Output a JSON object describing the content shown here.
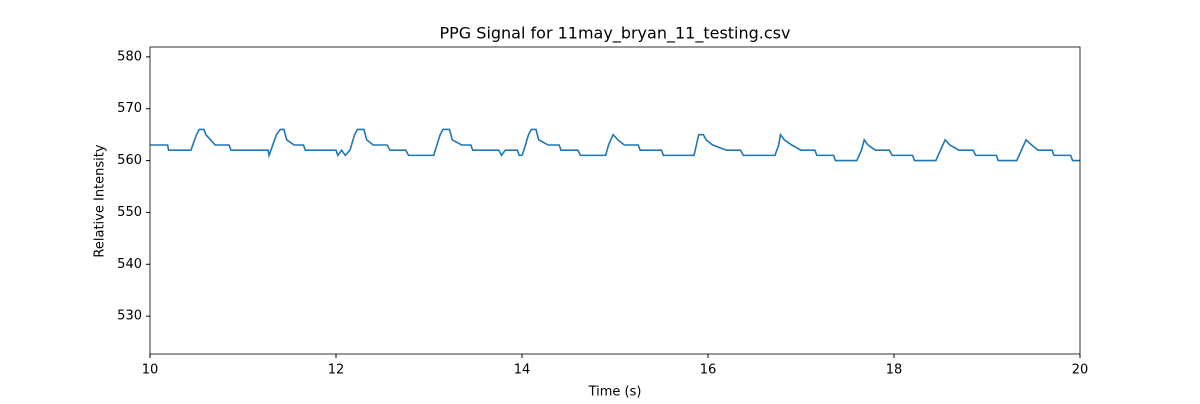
{
  "chart_data": {
    "type": "line",
    "title": "PPG Signal for 11may_bryan_11_testing.csv",
    "x_label": "Time (s)",
    "y_label": "Relative Intensity",
    "xlim": [
      10,
      20
    ],
    "xticks": [
      10,
      12,
      14,
      16,
      18,
      20
    ],
    "ylim": [
      522.7,
      581.9
    ],
    "yticks": [
      530,
      540,
      550,
      560,
      570,
      580
    ],
    "series": [
      {
        "color": "#1f77b4",
        "x": [
          10.0,
          10.19,
          10.2,
          10.44,
          10.5,
          10.53,
          10.58,
          10.6,
          10.65,
          10.7,
          10.85,
          10.87,
          11.27,
          11.28,
          11.3,
          11.36,
          11.4,
          11.44,
          11.47,
          11.55,
          11.65,
          11.67,
          12.0,
          12.02,
          12.06,
          12.1,
          12.15,
          12.2,
          12.23,
          12.3,
          12.33,
          12.4,
          12.55,
          12.58,
          12.75,
          12.78,
          13.05,
          13.12,
          13.15,
          13.22,
          13.25,
          13.35,
          13.45,
          13.47,
          13.75,
          13.78,
          13.82,
          13.95,
          13.97,
          14.0,
          14.02,
          14.07,
          14.1,
          14.15,
          14.18,
          14.28,
          14.4,
          14.42,
          14.6,
          14.63,
          14.9,
          14.93,
          14.98,
          15.03,
          15.1,
          15.25,
          15.27,
          15.5,
          15.52,
          15.85,
          15.9,
          15.95,
          15.98,
          16.05,
          16.2,
          16.35,
          16.38,
          16.72,
          16.76,
          16.78,
          16.82,
          16.9,
          17.0,
          17.15,
          17.17,
          17.35,
          17.37,
          17.6,
          17.65,
          17.68,
          17.72,
          17.8,
          17.95,
          17.98,
          18.2,
          18.22,
          18.45,
          18.5,
          18.55,
          18.6,
          18.7,
          18.85,
          18.88,
          19.1,
          19.12,
          19.32,
          19.37,
          19.42,
          19.48,
          19.55,
          19.7,
          19.72,
          19.9,
          19.92,
          20.0
        ],
        "values": [
          563,
          563,
          562,
          562,
          565,
          566,
          566,
          565,
          564,
          563,
          563,
          562,
          562,
          561,
          562,
          565,
          566,
          566,
          564,
          563,
          563,
          562,
          562,
          561,
          562,
          561,
          562,
          565,
          566,
          566,
          564,
          563,
          563,
          562,
          562,
          561,
          561,
          565,
          566,
          566,
          564,
          563,
          563,
          562,
          562,
          561,
          562,
          562,
          561,
          561,
          562,
          565,
          566,
          566,
          564,
          563,
          563,
          562,
          562,
          561,
          561,
          563,
          565,
          564,
          563,
          563,
          562,
          562,
          561,
          561,
          565,
          565,
          564,
          563,
          562,
          562,
          561,
          561,
          563,
          565,
          564,
          563,
          562,
          562,
          561,
          561,
          560,
          560,
          562,
          564,
          563,
          562,
          562,
          561,
          561,
          560,
          560,
          562,
          564,
          563,
          562,
          562,
          561,
          561,
          560,
          560,
          562,
          564,
          563,
          562,
          562,
          561,
          561,
          560,
          560
        ]
      }
    ]
  }
}
